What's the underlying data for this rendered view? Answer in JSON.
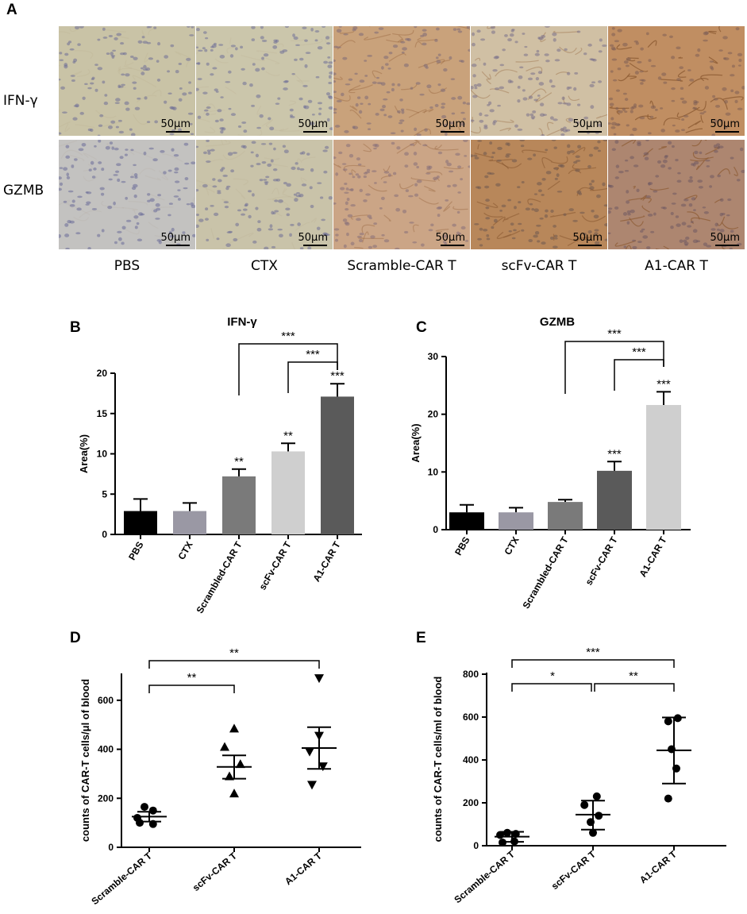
{
  "panel_A": {
    "letter": "A",
    "rows": [
      {
        "label": "IFN-γ",
        "tiles": [
          {
            "tone": "#c9c3a6",
            "cells": "#6e6d95",
            "stain": 0.05,
            "scale": "50μm"
          },
          {
            "tone": "#cbc6ab",
            "cells": "#6f6f98",
            "stain": 0.05,
            "scale": "50μm"
          },
          {
            "tone": "#c9a27b",
            "cells": "#7b6a78",
            "stain": 0.35,
            "scale": "50μm"
          },
          {
            "tone": "#d0c0a4",
            "cells": "#79708a",
            "stain": 0.35,
            "scale": "50μm"
          },
          {
            "tone": "#c08e62",
            "cells": "#7d5e55",
            "stain": 0.8,
            "scale": "50μm"
          }
        ]
      },
      {
        "label": "GZMB",
        "tiles": [
          {
            "tone": "#c3c2c0",
            "cells": "#6a6c98",
            "stain": 0.05,
            "scale": "50μm"
          },
          {
            "tone": "#c9c3a9",
            "cells": "#6d6d96",
            "stain": 0.05,
            "scale": "50μm"
          },
          {
            "tone": "#cba586",
            "cells": "#86707a",
            "stain": 0.35,
            "scale": "50μm"
          },
          {
            "tone": "#b8875a",
            "cells": "#6d5750",
            "stain": 0.6,
            "scale": "50μm"
          },
          {
            "tone": "#ad8670",
            "cells": "#6f5a62",
            "stain": 0.7,
            "scale": "50μm"
          }
        ]
      }
    ],
    "column_labels": [
      "PBS",
      "CTX",
      "Scramble-CAR T",
      "scFv-CAR T",
      "A1-CAR T"
    ]
  },
  "chart_data": [
    {
      "panel": "B",
      "type": "bar",
      "title": "IFN-γ",
      "ylabel": "Area(%)",
      "ylim": [
        0,
        20
      ],
      "yticks": [
        0,
        5,
        10,
        15,
        20
      ],
      "categories": [
        "PBS",
        "CTX",
        "Scrambled-CAR T",
        "scFv-CAR T",
        "A1-CAR T"
      ],
      "values": [
        2.9,
        2.9,
        7.2,
        10.3,
        17.1
      ],
      "errors": [
        1.5,
        1.0,
        0.9,
        1.0,
        1.6
      ],
      "colors": [
        "#000000",
        "#9a98a4",
        "#7a7a7a",
        "#cfcfcf",
        "#5a5a5a"
      ],
      "bar_labels": [
        "",
        "",
        "**",
        "**",
        "***"
      ],
      "brackets": [
        {
          "from": 2,
          "to": 4,
          "label": "***",
          "level": 2
        },
        {
          "from": 3,
          "to": 4,
          "label": "***",
          "level": 1
        }
      ]
    },
    {
      "panel": "C",
      "type": "bar",
      "title": "GZMB",
      "ylabel": "Area(%)",
      "ylim": [
        0,
        30
      ],
      "yticks": [
        0,
        10,
        20,
        30
      ],
      "categories": [
        "PBS",
        "CTX",
        "Scrambled-CAR T",
        "scFv-CAR T",
        "A1-CAR T"
      ],
      "values": [
        3.0,
        3.0,
        4.8,
        10.2,
        21.6
      ],
      "errors": [
        1.3,
        0.8,
        0.4,
        1.6,
        2.3
      ],
      "colors": [
        "#000000",
        "#9a98a4",
        "#7a7a7a",
        "#5a5a5a",
        "#cfcfcf"
      ],
      "bar_labels": [
        "",
        "",
        "",
        "***",
        "***"
      ],
      "brackets": [
        {
          "from": 2,
          "to": 4,
          "label": "***",
          "level": 2
        },
        {
          "from": 3,
          "to": 4,
          "label": "***",
          "level": 1
        }
      ]
    },
    {
      "panel": "D",
      "type": "scatter",
      "ylabel": "counts of CAR-T cells/μl of blood",
      "ylim": [
        0,
        700
      ],
      "yticks": [
        0,
        200,
        400,
        600
      ],
      "categories": [
        "Scramble-CAR T",
        "scFv-CAR T",
        "A1-CAR T"
      ],
      "markers": [
        "circle",
        "triangle-up",
        "triangle-down"
      ],
      "points": [
        [
          [
            -0.25,
            120
          ],
          [
            -0.1,
            165
          ],
          [
            0.08,
            150
          ],
          [
            -0.2,
            100
          ],
          [
            0.08,
            95
          ]
        ],
        [
          [
            0.0,
            485
          ],
          [
            -0.2,
            410
          ],
          [
            0.13,
            340
          ],
          [
            -0.1,
            290
          ],
          [
            0.0,
            220
          ]
        ],
        [
          [
            0.0,
            690
          ],
          [
            0.0,
            455
          ],
          [
            -0.2,
            390
          ],
          [
            0.08,
            330
          ],
          [
            -0.15,
            255
          ]
        ]
      ],
      "means": [
        125,
        328,
        405
      ],
      "error_low": [
        105,
        280,
        320
      ],
      "error_high": [
        145,
        375,
        490
      ],
      "brackets": [
        {
          "from": 0,
          "to": 1,
          "label": "**",
          "level": 1
        },
        {
          "from": 0,
          "to": 2,
          "label": "**",
          "level": 2
        }
      ]
    },
    {
      "panel": "E",
      "type": "scatter",
      "ylabel": "counts of CAR-T cells/ml of blood",
      "ylim": [
        0,
        800
      ],
      "yticks": [
        0,
        200,
        400,
        600,
        800
      ],
      "categories": [
        "Scramble-CAR T",
        "scFv-CAR T",
        "A1-CAR T"
      ],
      "markers": [
        "circle",
        "circle",
        "circle"
      ],
      "points": [
        [
          [
            -0.25,
            50
          ],
          [
            -0.1,
            60
          ],
          [
            0.08,
            55
          ],
          [
            -0.2,
            15
          ],
          [
            0.05,
            20
          ]
        ],
        [
          [
            0.08,
            230
          ],
          [
            -0.18,
            190
          ],
          [
            0.12,
            140
          ],
          [
            -0.05,
            110
          ],
          [
            0.0,
            60
          ]
        ],
        [
          [
            0.08,
            595
          ],
          [
            -0.12,
            580
          ],
          [
            -0.05,
            450
          ],
          [
            0.05,
            360
          ],
          [
            -0.12,
            220
          ]
        ]
      ],
      "means": [
        42,
        145,
        445
      ],
      "error_low": [
        18,
        75,
        290
      ],
      "error_high": [
        65,
        210,
        598
      ],
      "brackets": [
        {
          "from": 0,
          "to": 1,
          "label": "*",
          "level": 1
        },
        {
          "from": 1,
          "to": 2,
          "label": "**",
          "level": 1
        },
        {
          "from": 0,
          "to": 2,
          "label": "***",
          "level": 2
        }
      ]
    }
  ]
}
